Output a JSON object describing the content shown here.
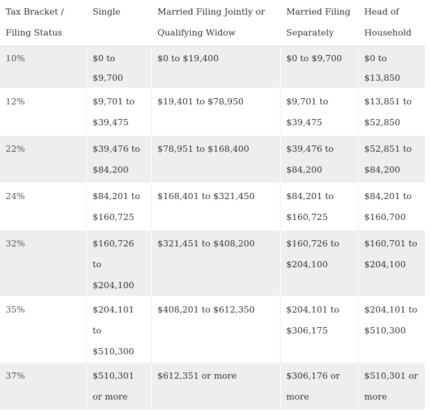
{
  "headers": [
    "Tax Bracket / Filing Status",
    "Single",
    "Married Filing Jointly or Qualifying Widow",
    "Married Filing Separately",
    "Head of Household"
  ],
  "rows": [
    [
      "10%",
      "$0 to $9,700",
      "$0 to $19,400",
      "$0 to $9,700",
      "$0 to $13,850"
    ],
    [
      "12%",
      "$9,701 to $39,475",
      "$19,401 to $78,950",
      "$9,701 to $39,475",
      "$13,851 to $52,850"
    ],
    [
      "22%",
      "$39,476 to $84,200",
      "$78,951 to $168,400",
      "$39,476 to $84,200",
      "$52,851 to $84,200"
    ],
    [
      "24%",
      "$84,201 to $160,725",
      "$168,401 to $321,450",
      "$84,201 to $160,725",
      "$84,201 to $160,700"
    ],
    [
      "32%",
      "$160,726 to $204,100",
      "$321,451 to $408,200",
      "$160,726 to $204,100",
      "$160,701 to $204,100"
    ],
    [
      "35%",
      "$204,101 to $510,300",
      "$408,201 to $612,350",
      "$204,101 to $306,175",
      "$204,101 to $510,300"
    ],
    [
      "37%",
      "$510,301 or more",
      "$612,351 or more",
      "$306,176 or more",
      "$510,301 or more"
    ]
  ]
}
